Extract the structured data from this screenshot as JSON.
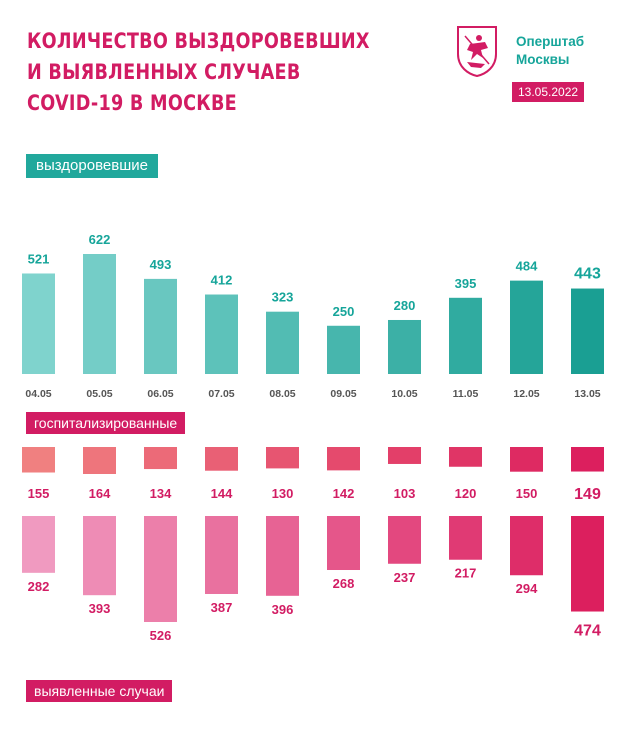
{
  "header": {
    "title_lines": [
      "КОЛИЧЕСТВО ВЫЗДОРОВЕВШИХ",
      "И ВЫЯВЛЕННЫХ СЛУЧАЕВ",
      "COVID-19 В МОСКВЕ"
    ],
    "org_lines": [
      "Оперштаб",
      "Москвы"
    ],
    "date": "13.05.2022",
    "logo_icon": "moscow-coat-of-arms-icon"
  },
  "colors": {
    "teal": "#21a89c",
    "magenta": "#d21c63"
  },
  "chart_data": [
    {
      "type": "bar",
      "label": "выздоровевшие",
      "categories": [
        "04.05",
        "05.05",
        "06.05",
        "07.05",
        "08.05",
        "09.05",
        "10.05",
        "11.05",
        "12.05",
        "13.05"
      ],
      "values": [
        521,
        622,
        493,
        412,
        323,
        250,
        280,
        395,
        484,
        443
      ],
      "color_from": "#7fd3cd",
      "color_to": "#1a9f93"
    },
    {
      "type": "bar",
      "label": "госпитализированные",
      "categories": [
        "04.05",
        "05.05",
        "06.05",
        "07.05",
        "08.05",
        "09.05",
        "10.05",
        "11.05",
        "12.05",
        "13.05"
      ],
      "values": [
        155,
        164,
        134,
        144,
        130,
        142,
        103,
        120,
        150,
        149
      ],
      "color_from": "#f08080",
      "color_to": "#dc1f5e"
    },
    {
      "type": "bar",
      "label": "выявленные случаи",
      "categories": [
        "04.05",
        "05.05",
        "06.05",
        "07.05",
        "08.05",
        "09.05",
        "10.05",
        "11.05",
        "12.05",
        "13.05"
      ],
      "values": [
        282,
        393,
        526,
        387,
        396,
        268,
        237,
        217,
        294,
        474
      ],
      "color_from": "#f09ac0",
      "color_to": "#dc1f5e"
    }
  ]
}
